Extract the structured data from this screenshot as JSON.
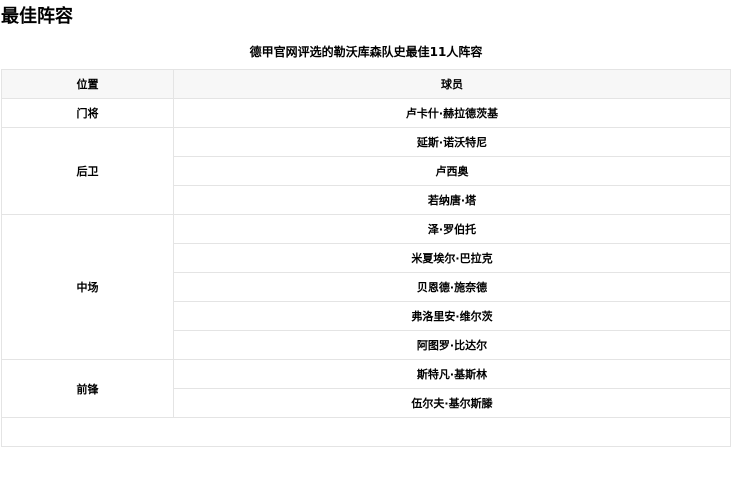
{
  "title": "最佳阵容",
  "caption": "德甲官网评选的勒沃库森队史最佳11人阵容",
  "headers": [
    "位置",
    "球员"
  ],
  "groups": [
    {
      "position": "门将",
      "players": [
        "卢卡什·赫拉德茨基"
      ]
    },
    {
      "position": "后卫",
      "players": [
        "延斯·诺沃特尼",
        "卢西奥",
        "若纳唐·塔"
      ]
    },
    {
      "position": "中场",
      "players": [
        "泽·罗伯托",
        "米夏埃尔·巴拉克",
        "贝恩德·施奈德",
        "弗洛里安·维尔茨",
        "阿图罗·比达尔"
      ]
    },
    {
      "position": "前锋",
      "players": [
        "斯特凡·基斯林",
        "伍尔夫·基尔斯滕"
      ]
    }
  ]
}
